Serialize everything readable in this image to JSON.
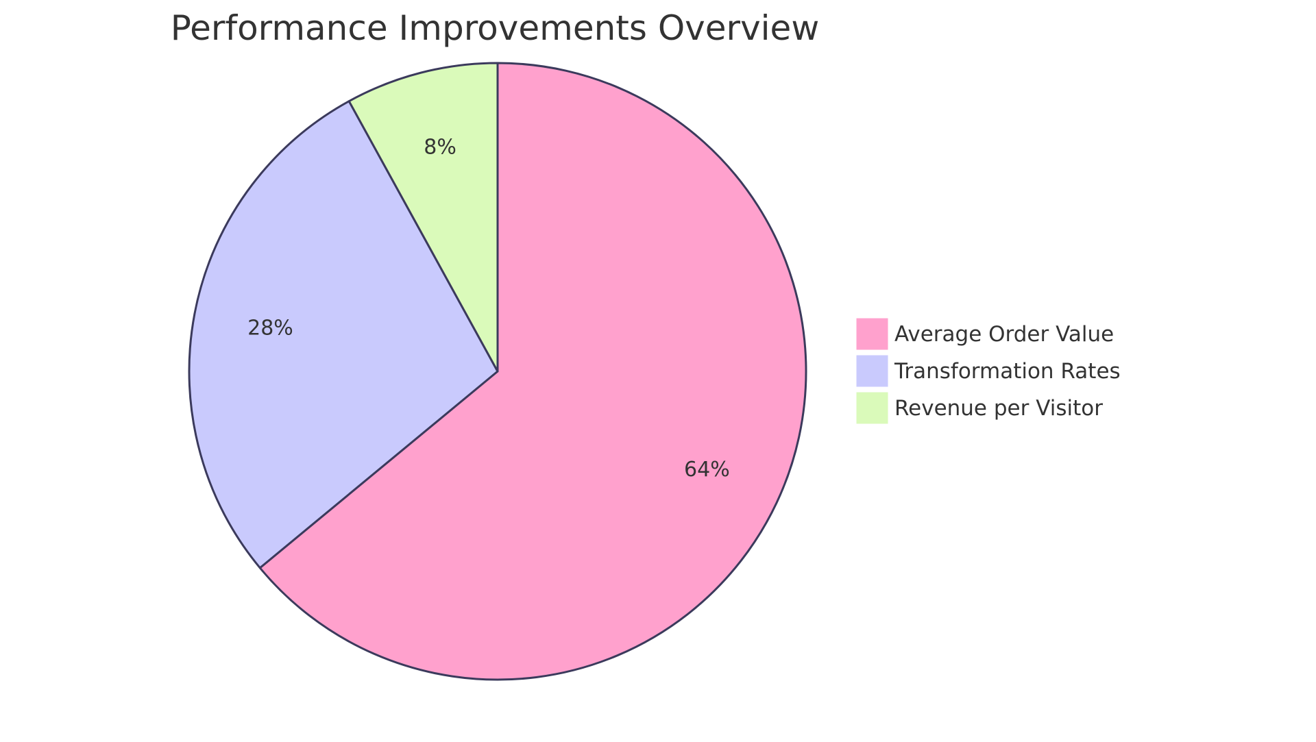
{
  "chart_data": {
    "type": "pie",
    "title": "Performance Improvements Overview",
    "slices": [
      {
        "label": "Average Order Value",
        "value": 64,
        "display": "64%",
        "color": "#FFA1CD"
      },
      {
        "label": "Transformation Rates",
        "value": 28,
        "display": "28%",
        "color": "#C9CAFD"
      },
      {
        "label": "Revenue per Visitor",
        "value": 8,
        "display": "8%",
        "color": "#DAFABA"
      }
    ],
    "start_angle": "12 o'clock",
    "direction": "clockwise",
    "legend_position": "right",
    "slice_stroke_color": "#3B3A5C"
  }
}
